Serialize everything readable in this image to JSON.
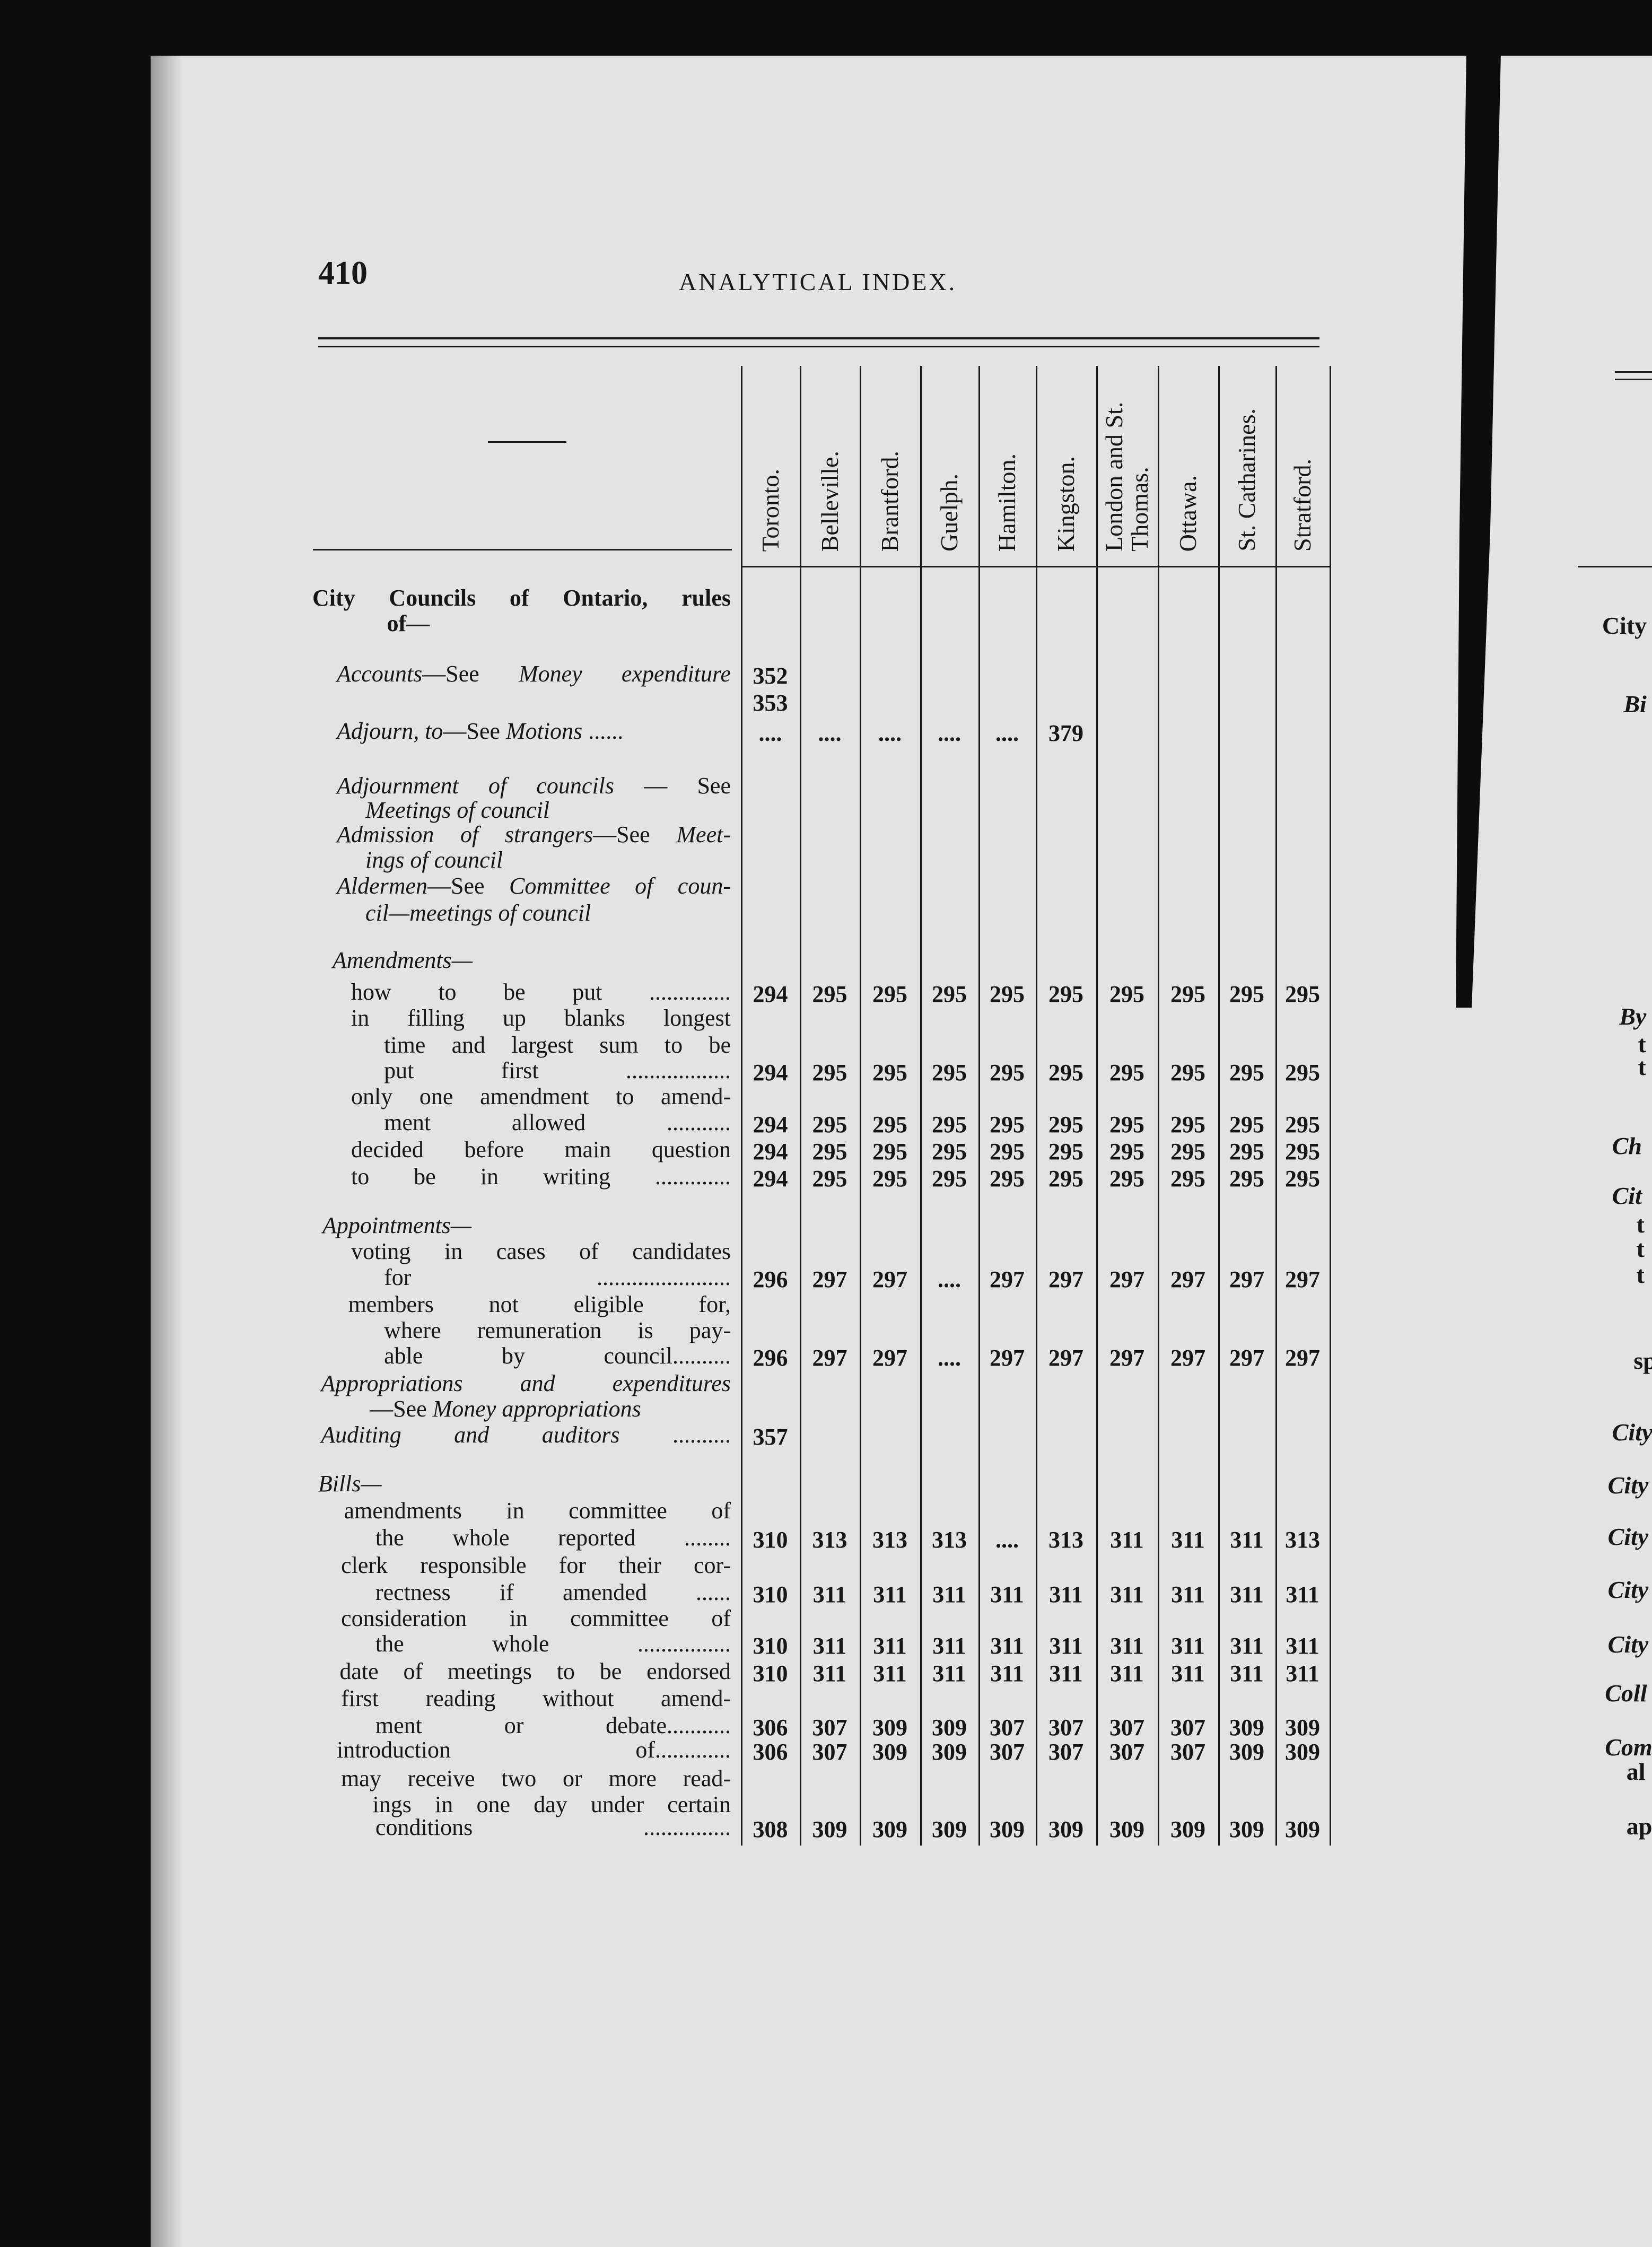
{
  "header": {
    "page_number": "410",
    "title": "ANALYTICAL INDEX."
  },
  "columns": [
    "Toronto.",
    "Belleville.",
    "Brantford.",
    "Guelph.",
    "Hamilton.",
    "Kingston.",
    "London and St. Thomas.",
    "Ottawa.",
    "St. Catharines.",
    "Stratford."
  ],
  "heading_dash": "——",
  "entries": [
    {
      "segs": [
        [
          "City Councils of Ontario, rules",
          "b"
        ]
      ]
    },
    {
      "segs": [
        [
          "of—",
          "b"
        ]
      ]
    },
    {
      "segs": [
        [
          "Accounts",
          "i"
        ],
        [
          "—See ",
          ""
        ],
        [
          "Money expenditure",
          "i"
        ]
      ],
      "vals": [
        "352",
        "",
        "",
        "",
        "",
        "",
        "",
        "",
        "",
        ""
      ]
    },
    {
      "segs": [],
      "vals": [
        "353",
        "",
        "",
        "",
        "",
        "",
        "",
        "",
        "",
        ""
      ]
    },
    {
      "segs": [
        [
          "Adjourn, to",
          "i"
        ],
        [
          "—See ",
          ""
        ],
        [
          "Motions",
          "i"
        ],
        [
          " ......",
          ""
        ]
      ],
      "vals": [
        "....",
        "....",
        "....",
        "....",
        "....",
        "379",
        "",
        "",
        "",
        ""
      ]
    },
    {
      "segs": [
        [
          "Adjournment of councils",
          "i"
        ],
        [
          " — See",
          ""
        ]
      ]
    },
    {
      "segs": [
        [
          "Meetings of council",
          "i"
        ]
      ]
    },
    {
      "segs": [
        [
          "Admission of strangers",
          "i"
        ],
        [
          "—See ",
          ""
        ],
        [
          "Meet-",
          "i"
        ]
      ]
    },
    {
      "segs": [
        [
          "ings of council",
          "i"
        ]
      ]
    },
    {
      "segs": [
        [
          "Aldermen",
          "i"
        ],
        [
          "—See ",
          ""
        ],
        [
          "Committee of coun-",
          "i"
        ]
      ]
    },
    {
      "segs": [
        [
          "cil—meetings of council",
          "i"
        ]
      ]
    },
    {
      "segs": [
        [
          "Amendments—",
          "i"
        ]
      ]
    },
    {
      "segs": [
        [
          "how to be put ..............",
          ""
        ]
      ],
      "vals": [
        "294",
        "295",
        "295",
        "295",
        "295",
        "295",
        "295",
        "295",
        "295",
        "295"
      ]
    },
    {
      "segs": [
        [
          "in filling up blanks longest",
          ""
        ]
      ]
    },
    {
      "segs": [
        [
          "time and largest sum to be",
          ""
        ]
      ]
    },
    {
      "segs": [
        [
          "put first ..................",
          ""
        ]
      ],
      "vals": [
        "294",
        "295",
        "295",
        "295",
        "295",
        "295",
        "295",
        "295",
        "295",
        "295"
      ]
    },
    {
      "segs": [
        [
          "only one amendment to amend-",
          ""
        ]
      ]
    },
    {
      "segs": [
        [
          "ment allowed ...........",
          ""
        ]
      ],
      "vals": [
        "294",
        "295",
        "295",
        "295",
        "295",
        "295",
        "295",
        "295",
        "295",
        "295"
      ]
    },
    {
      "segs": [
        [
          "decided before main question",
          ""
        ]
      ],
      "vals": [
        "294",
        "295",
        "295",
        "295",
        "295",
        "295",
        "295",
        "295",
        "295",
        "295"
      ]
    },
    {
      "segs": [
        [
          "to be in writing .............",
          ""
        ]
      ],
      "vals": [
        "294",
        "295",
        "295",
        "295",
        "295",
        "295",
        "295",
        "295",
        "295",
        "295"
      ]
    },
    {
      "segs": [
        [
          "Appointments—",
          "i"
        ]
      ]
    },
    {
      "segs": [
        [
          "voting in cases of candidates",
          ""
        ]
      ]
    },
    {
      "segs": [
        [
          "for .......................",
          ""
        ]
      ],
      "vals": [
        "296",
        "297",
        "297",
        "....",
        "297",
        "297",
        "297",
        "297",
        "297",
        "297"
      ]
    },
    {
      "segs": [
        [
          "members not eligible for,",
          ""
        ]
      ]
    },
    {
      "segs": [
        [
          "where remuneration is pay-",
          ""
        ]
      ]
    },
    {
      "segs": [
        [
          "able by council..........",
          ""
        ]
      ],
      "vals": [
        "296",
        "297",
        "297",
        "....",
        "297",
        "297",
        "297",
        "297",
        "297",
        "297"
      ]
    },
    {
      "segs": [
        [
          "Appropriations and expenditures",
          "i"
        ]
      ]
    },
    {
      "segs": [
        [
          "—See ",
          ""
        ],
        [
          "Money appropriations",
          "i"
        ]
      ]
    },
    {
      "segs": [
        [
          "Auditing and auditors",
          "i"
        ],
        [
          " ..........",
          ""
        ]
      ],
      "vals": [
        "357",
        "",
        "",
        "",
        "",
        "",
        "",
        "",
        "",
        ""
      ]
    },
    {
      "segs": [
        [
          "Bills—",
          "i"
        ]
      ]
    },
    {
      "segs": [
        [
          "amendments in committee of",
          ""
        ]
      ]
    },
    {
      "segs": [
        [
          "the whole reported ........",
          ""
        ]
      ],
      "vals": [
        "310",
        "313",
        "313",
        "313",
        "....",
        "313",
        "311",
        "311",
        "311",
        "313"
      ]
    },
    {
      "segs": [
        [
          "clerk responsible for their cor-",
          ""
        ]
      ]
    },
    {
      "segs": [
        [
          "rectness if amended ......",
          ""
        ]
      ],
      "vals": [
        "310",
        "311",
        "311",
        "311",
        "311",
        "311",
        "311",
        "311",
        "311",
        "311"
      ]
    },
    {
      "segs": [
        [
          "consideration in committee of",
          ""
        ]
      ]
    },
    {
      "segs": [
        [
          "the whole ................",
          ""
        ]
      ],
      "vals": [
        "310",
        "311",
        "311",
        "311",
        "311",
        "311",
        "311",
        "311",
        "311",
        "311"
      ]
    },
    {
      "segs": [
        [
          "date of meetings to be endorsed",
          ""
        ]
      ],
      "vals": [
        "310",
        "311",
        "311",
        "311",
        "311",
        "311",
        "311",
        "311",
        "311",
        "311"
      ]
    },
    {
      "segs": [
        [
          "first reading without amend-",
          ""
        ]
      ]
    },
    {
      "segs": [
        [
          "ment or debate...........",
          ""
        ]
      ],
      "vals": [
        "306",
        "307",
        "309",
        "309",
        "307",
        "307",
        "307",
        "307",
        "309",
        "309"
      ]
    },
    {
      "segs": [
        [
          "introduction of.............",
          ""
        ]
      ],
      "vals": [
        "306",
        "307",
        "309",
        "309",
        "307",
        "307",
        "307",
        "307",
        "309",
        "309"
      ]
    },
    {
      "segs": [
        [
          "may receive two or more read-",
          ""
        ]
      ]
    },
    {
      "segs": [
        [
          "ings in one day under certain",
          ""
        ]
      ]
    },
    {
      "segs": [
        [
          "conditions ...............",
          ""
        ]
      ],
      "vals": [
        "308",
        "309",
        "309",
        "309",
        "309",
        "309",
        "309",
        "309",
        "309",
        "309"
      ]
    }
  ],
  "facing_page_fragments": [
    "City",
    "Bi",
    "By",
    "t",
    "t",
    "Ch",
    "Cit",
    "t",
    "t",
    "t",
    "sp",
    "City",
    "City",
    "City",
    "City",
    "City",
    "Coll",
    "Com",
    "al",
    "ap"
  ]
}
